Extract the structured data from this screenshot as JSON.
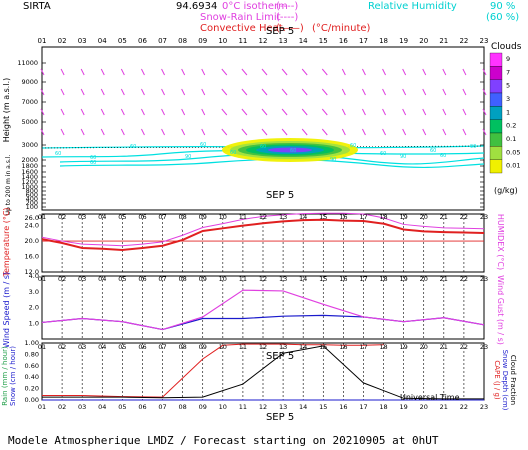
{
  "header": {
    "site": "SIRTA",
    "coord": "94.6934",
    "legend_0c": "0°C isotherm",
    "legend_snow": "Snow-Rain Limit",
    "legend_conv": "Convective Heat.",
    "legend_conv_unit": "(°C/minute)",
    "legend_rh": "Relative Humidity",
    "rh_90": "90 %",
    "rh_60": "(60 %)",
    "dash_a": "(----)",
    "dash_b": "(----)",
    "dash_c": "(——)"
  },
  "colors": {
    "magenta": "#e040e0",
    "cyan": "#00e0e0",
    "red": "#e02020",
    "blue": "#1a1acc",
    "green": "#22a04a",
    "yellow": "#f0f000",
    "black": "#000000"
  },
  "date_label": "SEP  5",
  "hours": [
    "01",
    "02",
    "03",
    "04",
    "05",
    "06",
    "07",
    "08",
    "09",
    "10",
    "11",
    "12",
    "13",
    "14",
    "15",
    "16",
    "17",
    "18",
    "19",
    "20",
    "21",
    "22",
    "23"
  ],
  "footer": {
    "universal_time": "Universal Time",
    "title": "Modele Atmospherique LMDZ / Forecast starting on 20210905 at 0hUT"
  },
  "chart_data": [
    {
      "type": "heatmap",
      "id": "clouds",
      "ylabel": "Height  (m a.s.l.)",
      "ylabel_low": "Up to 200 m in a.s.l.",
      "yticks": [
        "11000",
        "9000",
        "7000",
        "5000",
        "3000",
        "2000",
        "1800",
        "1600",
        "1400",
        "1200",
        "1000",
        "800",
        "600",
        "400",
        "200",
        "100"
      ],
      "colorbar_title": "Clouds",
      "colorbar_unit": "(g/kg)",
      "colorbar_ticks": [
        "9",
        "7",
        "5",
        "3",
        "1",
        "0.2",
        "0.1",
        "0.05",
        "0.01"
      ],
      "colorbar_colors": [
        "#ff33ff",
        "#cc00cc",
        "#8040ff",
        "#4060ff",
        "#00a0c0",
        "#00c060",
        "#40c040",
        "#a0e040",
        "#f0f000"
      ],
      "isotherm_labels": [
        "60",
        "60",
        "60",
        "90",
        "60",
        "60",
        "60",
        "60",
        "90",
        "60",
        "60",
        "90",
        "60",
        "60",
        "90",
        "60"
      ]
    },
    {
      "type": "line",
      "id": "temperature",
      "ylabel": "Temperature (°C)",
      "ylabel_right": "HUMIDEX (°C)",
      "yticks": [
        "26.0",
        "24.0",
        "20.0",
        "16.0",
        "12.0"
      ],
      "ylim": [
        12,
        27
      ],
      "x": [
        1,
        2,
        3,
        4,
        5,
        6,
        7,
        8,
        9,
        10,
        11,
        12,
        13,
        14,
        15,
        16,
        17,
        18,
        19,
        20,
        21,
        22,
        23
      ],
      "series": [
        {
          "values": [
            20.5,
            19.5,
            18.2,
            18.0,
            17.7,
            18.2,
            18.8,
            20.3,
            22.6,
            23.3,
            24.0,
            24.6,
            25.1,
            25.4,
            25.5,
            25.3,
            25.2,
            24.5,
            23.0,
            22.5,
            22.3,
            22.2,
            22.1
          ]
        },
        {
          "values": [
            21.0,
            20.0,
            19.2,
            19.0,
            18.8,
            19.2,
            19.8,
            21.5,
            23.5,
            24.5,
            25.6,
            26.4,
            26.8,
            27.1,
            27.2,
            27.2,
            27.0,
            26.0,
            24.3,
            23.8,
            23.4,
            23.3,
            23.2
          ]
        }
      ],
      "reference": 20.0
    },
    {
      "type": "line",
      "id": "wind",
      "ylabel": "Wind Speed (m / s)",
      "ylabel_right": "Wind Gust (m / s)",
      "yticks": [
        "4.0",
        "3.0",
        "2.0",
        "1.0"
      ],
      "ylim": [
        0,
        4
      ],
      "x": [
        1,
        3,
        5,
        7,
        9,
        11,
        13,
        15,
        17,
        19,
        21,
        23
      ],
      "series": [
        {
          "values": [
            1.05,
            1.3,
            1.1,
            0.6,
            1.3,
            1.3,
            1.45,
            1.5,
            1.4,
            1.1,
            1.35,
            0.9
          ]
        },
        {
          "values": [
            1.05,
            1.3,
            1.1,
            0.6,
            1.4,
            3.1,
            3.05,
            2.2,
            1.4,
            1.1,
            1.35,
            0.9
          ]
        }
      ]
    },
    {
      "type": "line",
      "id": "precip",
      "ylabel_rain": "Rain (mm / hour)",
      "ylabel_snow": "Snow (cm / hour)",
      "ylabel_right_cape": "CAPE (J / g)",
      "ylabel_right_snowdepth": "Snow Depth (cm)",
      "ylabel_right_cloudfrac": "Cloud Fraction",
      "yticks": [
        "1.00",
        "0.80",
        "0.60",
        "0.40",
        "0.20",
        "0.00"
      ],
      "ylim": [
        0,
        1
      ],
      "series": [
        {
          "x": [
            1,
            3,
            5,
            7,
            9,
            10,
            11,
            12,
            13,
            14,
            15,
            16,
            17,
            18
          ],
          "values": [
            0.08,
            0.08,
            0.06,
            0.05,
            0.72,
            0.96,
            0.98,
            0.98,
            0.98,
            0.97,
            0.97,
            0.96,
            0.96,
            0.97
          ]
        },
        {
          "x": [
            1,
            3,
            5,
            7,
            9,
            11,
            13,
            15,
            17,
            19,
            21,
            23
          ],
          "values": [
            0.05,
            0.05,
            0.05,
            0.04,
            0.05,
            0.28,
            0.82,
            0.95,
            0.3,
            0.03,
            0.02,
            0.02
          ]
        },
        {
          "x": [
            1,
            23
          ],
          "values": [
            0.0,
            0.0
          ]
        }
      ]
    }
  ]
}
